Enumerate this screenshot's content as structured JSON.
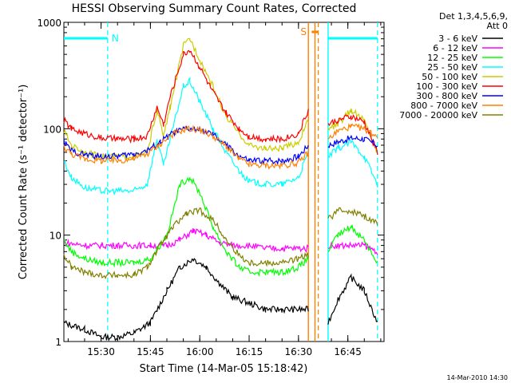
{
  "chart_data": {
    "type": "line",
    "title": "HESSI Observing Summary Count Rates, Corrected",
    "xlabel": "Start Time (14-Mar-05 15:18:42)",
    "ylabel": "Corrected Count Rate (s⁻¹ detector⁻¹)",
    "x_unit": "minutes",
    "xlim": [
      "15:18:42",
      "16:56:00"
    ],
    "ylim": [
      1,
      1000
    ],
    "y_scale": "log",
    "x_ticks": [
      "15:30",
      "15:45",
      "16:00",
      "16:15",
      "16:30",
      "16:45"
    ],
    "y_ticks": [
      "1",
      "10",
      "100",
      "1000"
    ],
    "legend_header": [
      "Det 1,3,4,5,6,9,",
      "Att 0"
    ],
    "legend_position": "right",
    "footer_date": "14-Mar-2010 14:30",
    "gaps": [
      [
        "16:34",
        "16:39"
      ]
    ],
    "markers": {
      "night_label": "N",
      "saa_label": "S",
      "night_bar_color": "#00ffff",
      "saa_bar_color": "#ff8000",
      "night_bars": [
        [
          "15:18:42",
          "15:32"
        ],
        [
          "16:39",
          "16:54"
        ]
      ],
      "saa_bar": [
        "16:34",
        "16:36"
      ],
      "dashed_cyan": [
        "15:32",
        "16:54"
      ],
      "dashed_orange": [
        "16:36"
      ],
      "solid_cyan": [
        "16:39"
      ],
      "solid_orange": [
        "16:33",
        "16:35"
      ]
    },
    "series": [
      {
        "name": "3 - 6 keV",
        "color": "#000000",
        "points": [
          [
            "15:18:42",
            1.5
          ],
          [
            "15:25",
            1.3
          ],
          [
            "15:30",
            1.1
          ],
          [
            "15:35",
            1.1
          ],
          [
            "15:40",
            1.2
          ],
          [
            "15:45",
            1.5
          ],
          [
            "15:50",
            3.0
          ],
          [
            "15:54",
            5.0
          ],
          [
            "15:58",
            6.0
          ],
          [
            "16:02",
            5.0
          ],
          [
            "16:06",
            3.5
          ],
          [
            "16:10",
            2.6
          ],
          [
            "16:15",
            2.3
          ],
          [
            "16:20",
            2.0
          ],
          [
            "16:25",
            2.0
          ],
          [
            "16:30",
            2.0
          ],
          [
            "16:33",
            2.0
          ],
          [
            "16:39",
            1.5
          ],
          [
            "16:42",
            2.5
          ],
          [
            "16:46",
            4.0
          ],
          [
            "16:50",
            3.0
          ],
          [
            "16:54",
            1.5
          ]
        ]
      },
      {
        "name": "6 - 12 keV",
        "color": "#ff00ff",
        "points": [
          [
            "15:18:42",
            8.5
          ],
          [
            "15:25",
            8.0
          ],
          [
            "15:30",
            8.0
          ],
          [
            "15:35",
            8.0
          ],
          [
            "15:40",
            8.0
          ],
          [
            "15:45",
            8.0
          ],
          [
            "15:50",
            8.0
          ],
          [
            "15:54",
            9.0
          ],
          [
            "15:58",
            11
          ],
          [
            "16:02",
            10
          ],
          [
            "16:06",
            8.5
          ],
          [
            "16:10",
            8.0
          ],
          [
            "16:15",
            8.0
          ],
          [
            "16:20",
            7.5
          ],
          [
            "16:25",
            7.5
          ],
          [
            "16:30",
            7.5
          ],
          [
            "16:33",
            7.5
          ],
          [
            "16:39",
            8.0
          ],
          [
            "16:42",
            8.0
          ],
          [
            "16:46",
            8.0
          ],
          [
            "16:50",
            8.0
          ],
          [
            "16:54",
            7.0
          ]
        ]
      },
      {
        "name": "12 - 25 keV",
        "color": "#00ff00",
        "points": [
          [
            "15:18:42",
            9.0
          ],
          [
            "15:21",
            7.0
          ],
          [
            "15:25",
            6.0
          ],
          [
            "15:30",
            5.5
          ],
          [
            "15:35",
            5.5
          ],
          [
            "15:40",
            5.5
          ],
          [
            "15:45",
            6.0
          ],
          [
            "15:50",
            10
          ],
          [
            "15:54",
            30
          ],
          [
            "15:57",
            35
          ],
          [
            "16:00",
            25
          ],
          [
            "16:04",
            12
          ],
          [
            "16:08",
            7.0
          ],
          [
            "16:12",
            5.0
          ],
          [
            "16:15",
            4.5
          ],
          [
            "16:20",
            4.5
          ],
          [
            "16:25",
            4.5
          ],
          [
            "16:30",
            5.0
          ],
          [
            "16:33",
            6.0
          ],
          [
            "16:39",
            7.0
          ],
          [
            "16:42",
            10
          ],
          [
            "16:46",
            12
          ],
          [
            "16:50",
            9.0
          ],
          [
            "16:54",
            5.5
          ]
        ]
      },
      {
        "name": "25 - 50 keV",
        "color": "#00ffff",
        "points": [
          [
            "15:18:42",
            50
          ],
          [
            "15:21",
            35
          ],
          [
            "15:25",
            28
          ],
          [
            "15:30",
            26
          ],
          [
            "15:35",
            26
          ],
          [
            "15:40",
            26
          ],
          [
            "15:44",
            30
          ],
          [
            "15:47",
            80
          ],
          [
            "15:49",
            45
          ],
          [
            "15:51",
            80
          ],
          [
            "15:55",
            250
          ],
          [
            "15:57",
            280
          ],
          [
            "16:00",
            180
          ],
          [
            "16:04",
            100
          ],
          [
            "16:08",
            60
          ],
          [
            "16:12",
            40
          ],
          [
            "16:15",
            32
          ],
          [
            "16:20",
            30
          ],
          [
            "16:25",
            30
          ],
          [
            "16:30",
            35
          ],
          [
            "16:33",
            60
          ],
          [
            "16:39",
            55
          ],
          [
            "16:42",
            65
          ],
          [
            "16:46",
            75
          ],
          [
            "16:50",
            55
          ],
          [
            "16:54",
            30
          ]
        ]
      },
      {
        "name": "50 - 100 keV",
        "color": "#cccc00",
        "points": [
          [
            "15:18:42",
            95
          ],
          [
            "15:21",
            70
          ],
          [
            "15:25",
            60
          ],
          [
            "15:30",
            55
          ],
          [
            "15:35",
            55
          ],
          [
            "15:40",
            55
          ],
          [
            "15:44",
            60
          ],
          [
            "15:47",
            150
          ],
          [
            "15:49",
            85
          ],
          [
            "15:51",
            160
          ],
          [
            "15:55",
            600
          ],
          [
            "15:57",
            700
          ],
          [
            "16:00",
            450
          ],
          [
            "16:04",
            250
          ],
          [
            "16:08",
            130
          ],
          [
            "16:12",
            90
          ],
          [
            "16:15",
            70
          ],
          [
            "16:20",
            65
          ],
          [
            "16:25",
            65
          ],
          [
            "16:30",
            75
          ],
          [
            "16:33",
            120
          ],
          [
            "16:39",
            100
          ],
          [
            "16:42",
            110
          ],
          [
            "16:46",
            150
          ],
          [
            "16:50",
            120
          ],
          [
            "16:54",
            60
          ]
        ]
      },
      {
        "name": "100 - 300 keV",
        "color": "#ff0000",
        "points": [
          [
            "15:18:42",
            120
          ],
          [
            "15:21",
            100
          ],
          [
            "15:25",
            90
          ],
          [
            "15:30",
            82
          ],
          [
            "15:35",
            80
          ],
          [
            "15:40",
            80
          ],
          [
            "15:44",
            85
          ],
          [
            "15:47",
            160
          ],
          [
            "15:49",
            110
          ],
          [
            "15:51",
            200
          ],
          [
            "15:55",
            500
          ],
          [
            "15:57",
            550
          ],
          [
            "16:00",
            380
          ],
          [
            "16:04",
            220
          ],
          [
            "16:08",
            140
          ],
          [
            "16:12",
            100
          ],
          [
            "16:15",
            85
          ],
          [
            "16:20",
            80
          ],
          [
            "16:25",
            80
          ],
          [
            "16:30",
            90
          ],
          [
            "16:33",
            150
          ],
          [
            "16:39",
            110
          ],
          [
            "16:42",
            120
          ],
          [
            "16:46",
            130
          ],
          [
            "16:50",
            115
          ],
          [
            "16:54",
            60
          ]
        ]
      },
      {
        "name": "300 - 800 keV",
        "color": "#0000ff",
        "points": [
          [
            "15:18:42",
            75
          ],
          [
            "15:21",
            62
          ],
          [
            "15:25",
            57
          ],
          [
            "15:30",
            55
          ],
          [
            "15:35",
            55
          ],
          [
            "15:40",
            58
          ],
          [
            "15:44",
            62
          ],
          [
            "15:48",
            75
          ],
          [
            "15:52",
            92
          ],
          [
            "15:56",
            100
          ],
          [
            "16:00",
            98
          ],
          [
            "16:04",
            88
          ],
          [
            "16:08",
            70
          ],
          [
            "16:12",
            55
          ],
          [
            "16:15",
            50
          ],
          [
            "16:20",
            50
          ],
          [
            "16:25",
            50
          ],
          [
            "16:30",
            55
          ],
          [
            "16:33",
            70
          ],
          [
            "16:39",
            70
          ],
          [
            "16:42",
            75
          ],
          [
            "16:46",
            82
          ],
          [
            "16:50",
            80
          ],
          [
            "16:54",
            70
          ]
        ]
      },
      {
        "name": "800 - 7000 keV",
        "color": "#ff8000",
        "points": [
          [
            "15:18:42",
            68
          ],
          [
            "15:21",
            58
          ],
          [
            "15:25",
            52
          ],
          [
            "15:30",
            50
          ],
          [
            "15:35",
            50
          ],
          [
            "15:40",
            52
          ],
          [
            "15:44",
            58
          ],
          [
            "15:48",
            72
          ],
          [
            "15:52",
            90
          ],
          [
            "15:56",
            100
          ],
          [
            "16:00",
            98
          ],
          [
            "16:04",
            85
          ],
          [
            "16:08",
            68
          ],
          [
            "16:12",
            52
          ],
          [
            "16:15",
            46
          ],
          [
            "16:20",
            45
          ],
          [
            "16:25",
            45
          ],
          [
            "16:30",
            48
          ],
          [
            "16:33",
            60
          ],
          [
            "16:39",
            80
          ],
          [
            "16:42",
            95
          ],
          [
            "16:46",
            105
          ],
          [
            "16:50",
            100
          ],
          [
            "16:54",
            85
          ]
        ]
      },
      {
        "name": "7000 - 20000 keV",
        "color": "#808000",
        "points": [
          [
            "15:18:42",
            6.5
          ],
          [
            "15:21",
            5.0
          ],
          [
            "15:25",
            4.5
          ],
          [
            "15:30",
            4.2
          ],
          [
            "15:35",
            4.2
          ],
          [
            "15:40",
            4.2
          ],
          [
            "15:44",
            5.0
          ],
          [
            "15:48",
            8.0
          ],
          [
            "15:52",
            12
          ],
          [
            "15:56",
            16
          ],
          [
            "16:00",
            17
          ],
          [
            "16:04",
            14
          ],
          [
            "16:08",
            9.0
          ],
          [
            "16:12",
            6.5
          ],
          [
            "16:15",
            5.5
          ],
          [
            "16:20",
            5.5
          ],
          [
            "16:25",
            5.5
          ],
          [
            "16:30",
            6.0
          ],
          [
            "16:33",
            6.5
          ],
          [
            "16:39",
            14
          ],
          [
            "16:42",
            17
          ],
          [
            "16:46",
            17
          ],
          [
            "16:50",
            15
          ],
          [
            "16:54",
            13
          ]
        ]
      }
    ]
  }
}
